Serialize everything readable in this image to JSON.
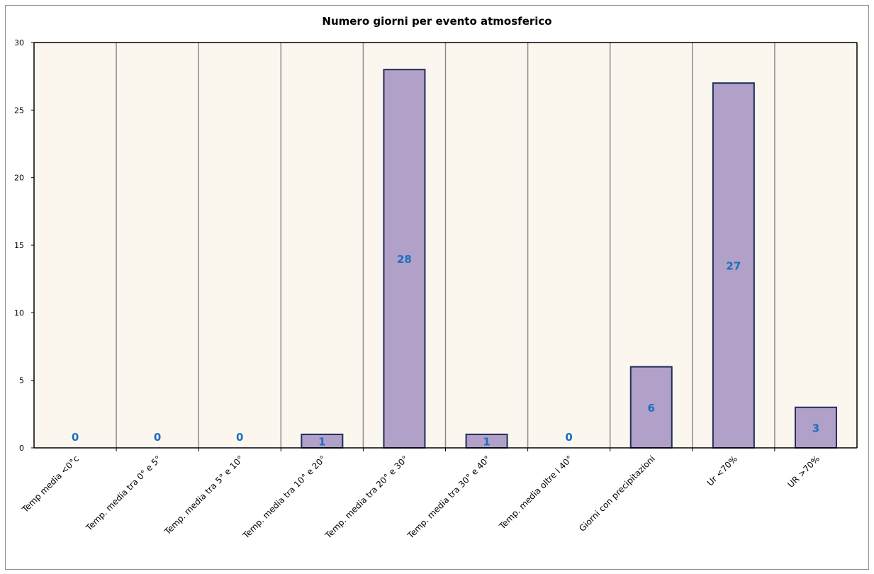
{
  "chart_data": {
    "type": "bar",
    "title": "Numero giorni  per evento atmosferico",
    "categories": [
      "Temp media <0°c",
      "Temp. media tra 0° e 5°",
      "Temp. media tra 5° e 10°",
      "Temp. media tra 10° e 20°",
      "Temp. media tra 20° e 30°",
      "Temp. media tra 30° e 40°",
      "Temp. media oltre i 40°",
      "Giorni con precipitazioni",
      "Ur  <70%",
      "UR >70%"
    ],
    "values": [
      0,
      0,
      0,
      1,
      28,
      1,
      0,
      6,
      27,
      3
    ],
    "ylim": [
      0,
      30
    ],
    "yticks": [
      0,
      5,
      10,
      15,
      20,
      25,
      30
    ],
    "xlabel": "",
    "ylabel": "",
    "grid": "vertical",
    "legend": "none",
    "colors": {
      "bar_fill": "#b1a0c7",
      "bar_stroke": "#1f2d5a",
      "plot_bg": "#fbf7ee",
      "grid": "#8c8c8c",
      "data_label": "#1f6dc2"
    }
  }
}
